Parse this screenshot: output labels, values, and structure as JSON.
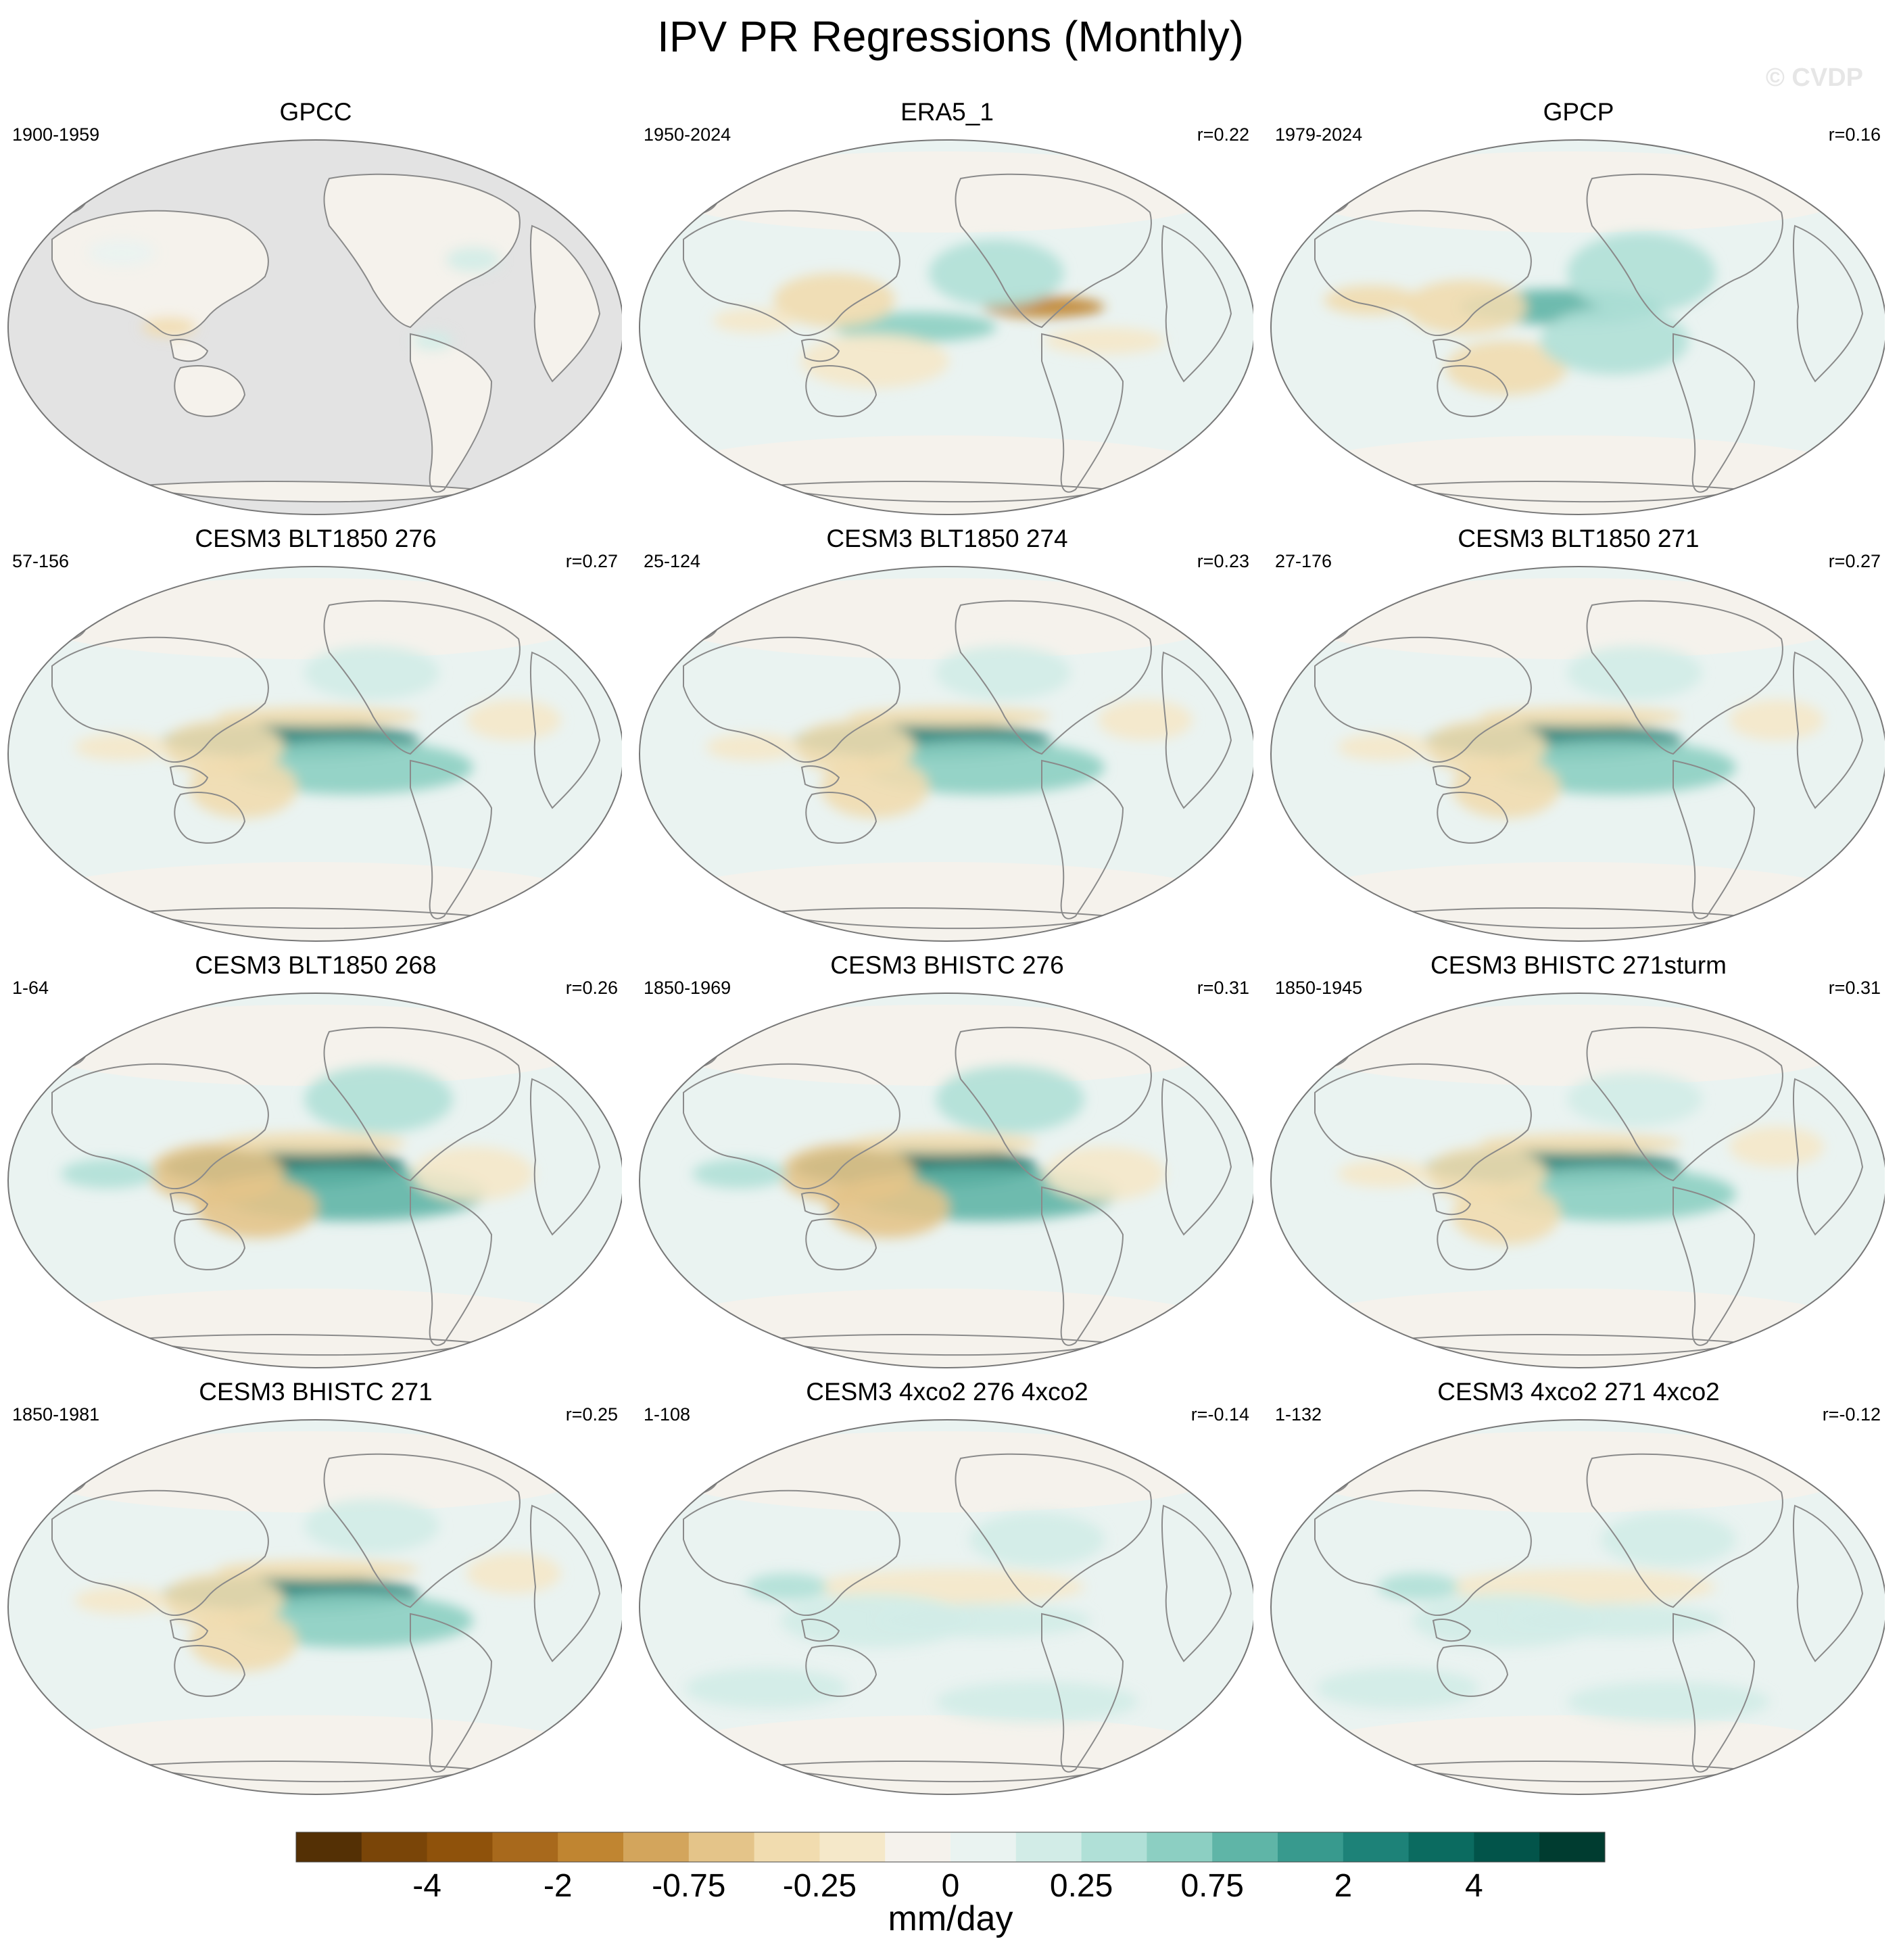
{
  "title": "IPV PR Regressions (Monthly)",
  "watermark": "© CVDP",
  "colors": {
    "land_outline": "#8a8a8a",
    "map_border": "#777777",
    "missing": "#e3e3e3",
    "palette": [
      "#543005",
      "#7a4508",
      "#8f520b",
      "#a8691c",
      "#c08531",
      "#d3a55c",
      "#e4c489",
      "#f1dcaf",
      "#f5e8c9",
      "#f5f2ec",
      "#eaf3f1",
      "#d2ece7",
      "#b0e0d7",
      "#8ccfc2",
      "#5fb5a7",
      "#389a8e",
      "#1d8278",
      "#0b6b60",
      "#02544a",
      "#003c30"
    ]
  },
  "panels": [
    {
      "name": "GPCC",
      "period": "1900-1959",
      "r": "",
      "style": "obs-gpcc"
    },
    {
      "name": "ERA5_1",
      "period": "1950-2024",
      "r": "r=0.22",
      "style": "era5"
    },
    {
      "name": "GPCP",
      "period": "1979-2024",
      "r": "r=0.16",
      "style": "gpcp"
    },
    {
      "name": "CESM3 BLT1850 276",
      "period": "57-156",
      "r": "r=0.27",
      "style": "model"
    },
    {
      "name": "CESM3 BLT1850 274",
      "period": "25-124",
      "r": "r=0.23",
      "style": "model"
    },
    {
      "name": "CESM3 BLT1850 271",
      "period": "27-176",
      "r": "r=0.27",
      "style": "model"
    },
    {
      "name": "CESM3 BLT1850 268",
      "period": "1-64",
      "r": "r=0.26",
      "style": "model-strong"
    },
    {
      "name": "CESM3 BHISTC 276",
      "period": "1850-1969",
      "r": "r=0.31",
      "style": "model-strong"
    },
    {
      "name": "CESM3 BHISTC 271sturm",
      "period": "1850-1945",
      "r": "r=0.31",
      "style": "model"
    },
    {
      "name": "CESM3 BHISTC 271",
      "period": "1850-1981",
      "r": "r=0.25",
      "style": "model"
    },
    {
      "name": "CESM3 4xco2 276 4xco2",
      "period": "1-108",
      "r": "r=-0.14",
      "style": "co2"
    },
    {
      "name": "CESM3 4xco2 271 4xco2",
      "period": "1-132",
      "r": "r=-0.12",
      "style": "co2"
    }
  ],
  "colorbar": {
    "labels": [
      "-4",
      "-2",
      "-0.75",
      "-0.25",
      "0",
      "0.25",
      "0.75",
      "2",
      "4"
    ],
    "units": "mm/day"
  }
}
